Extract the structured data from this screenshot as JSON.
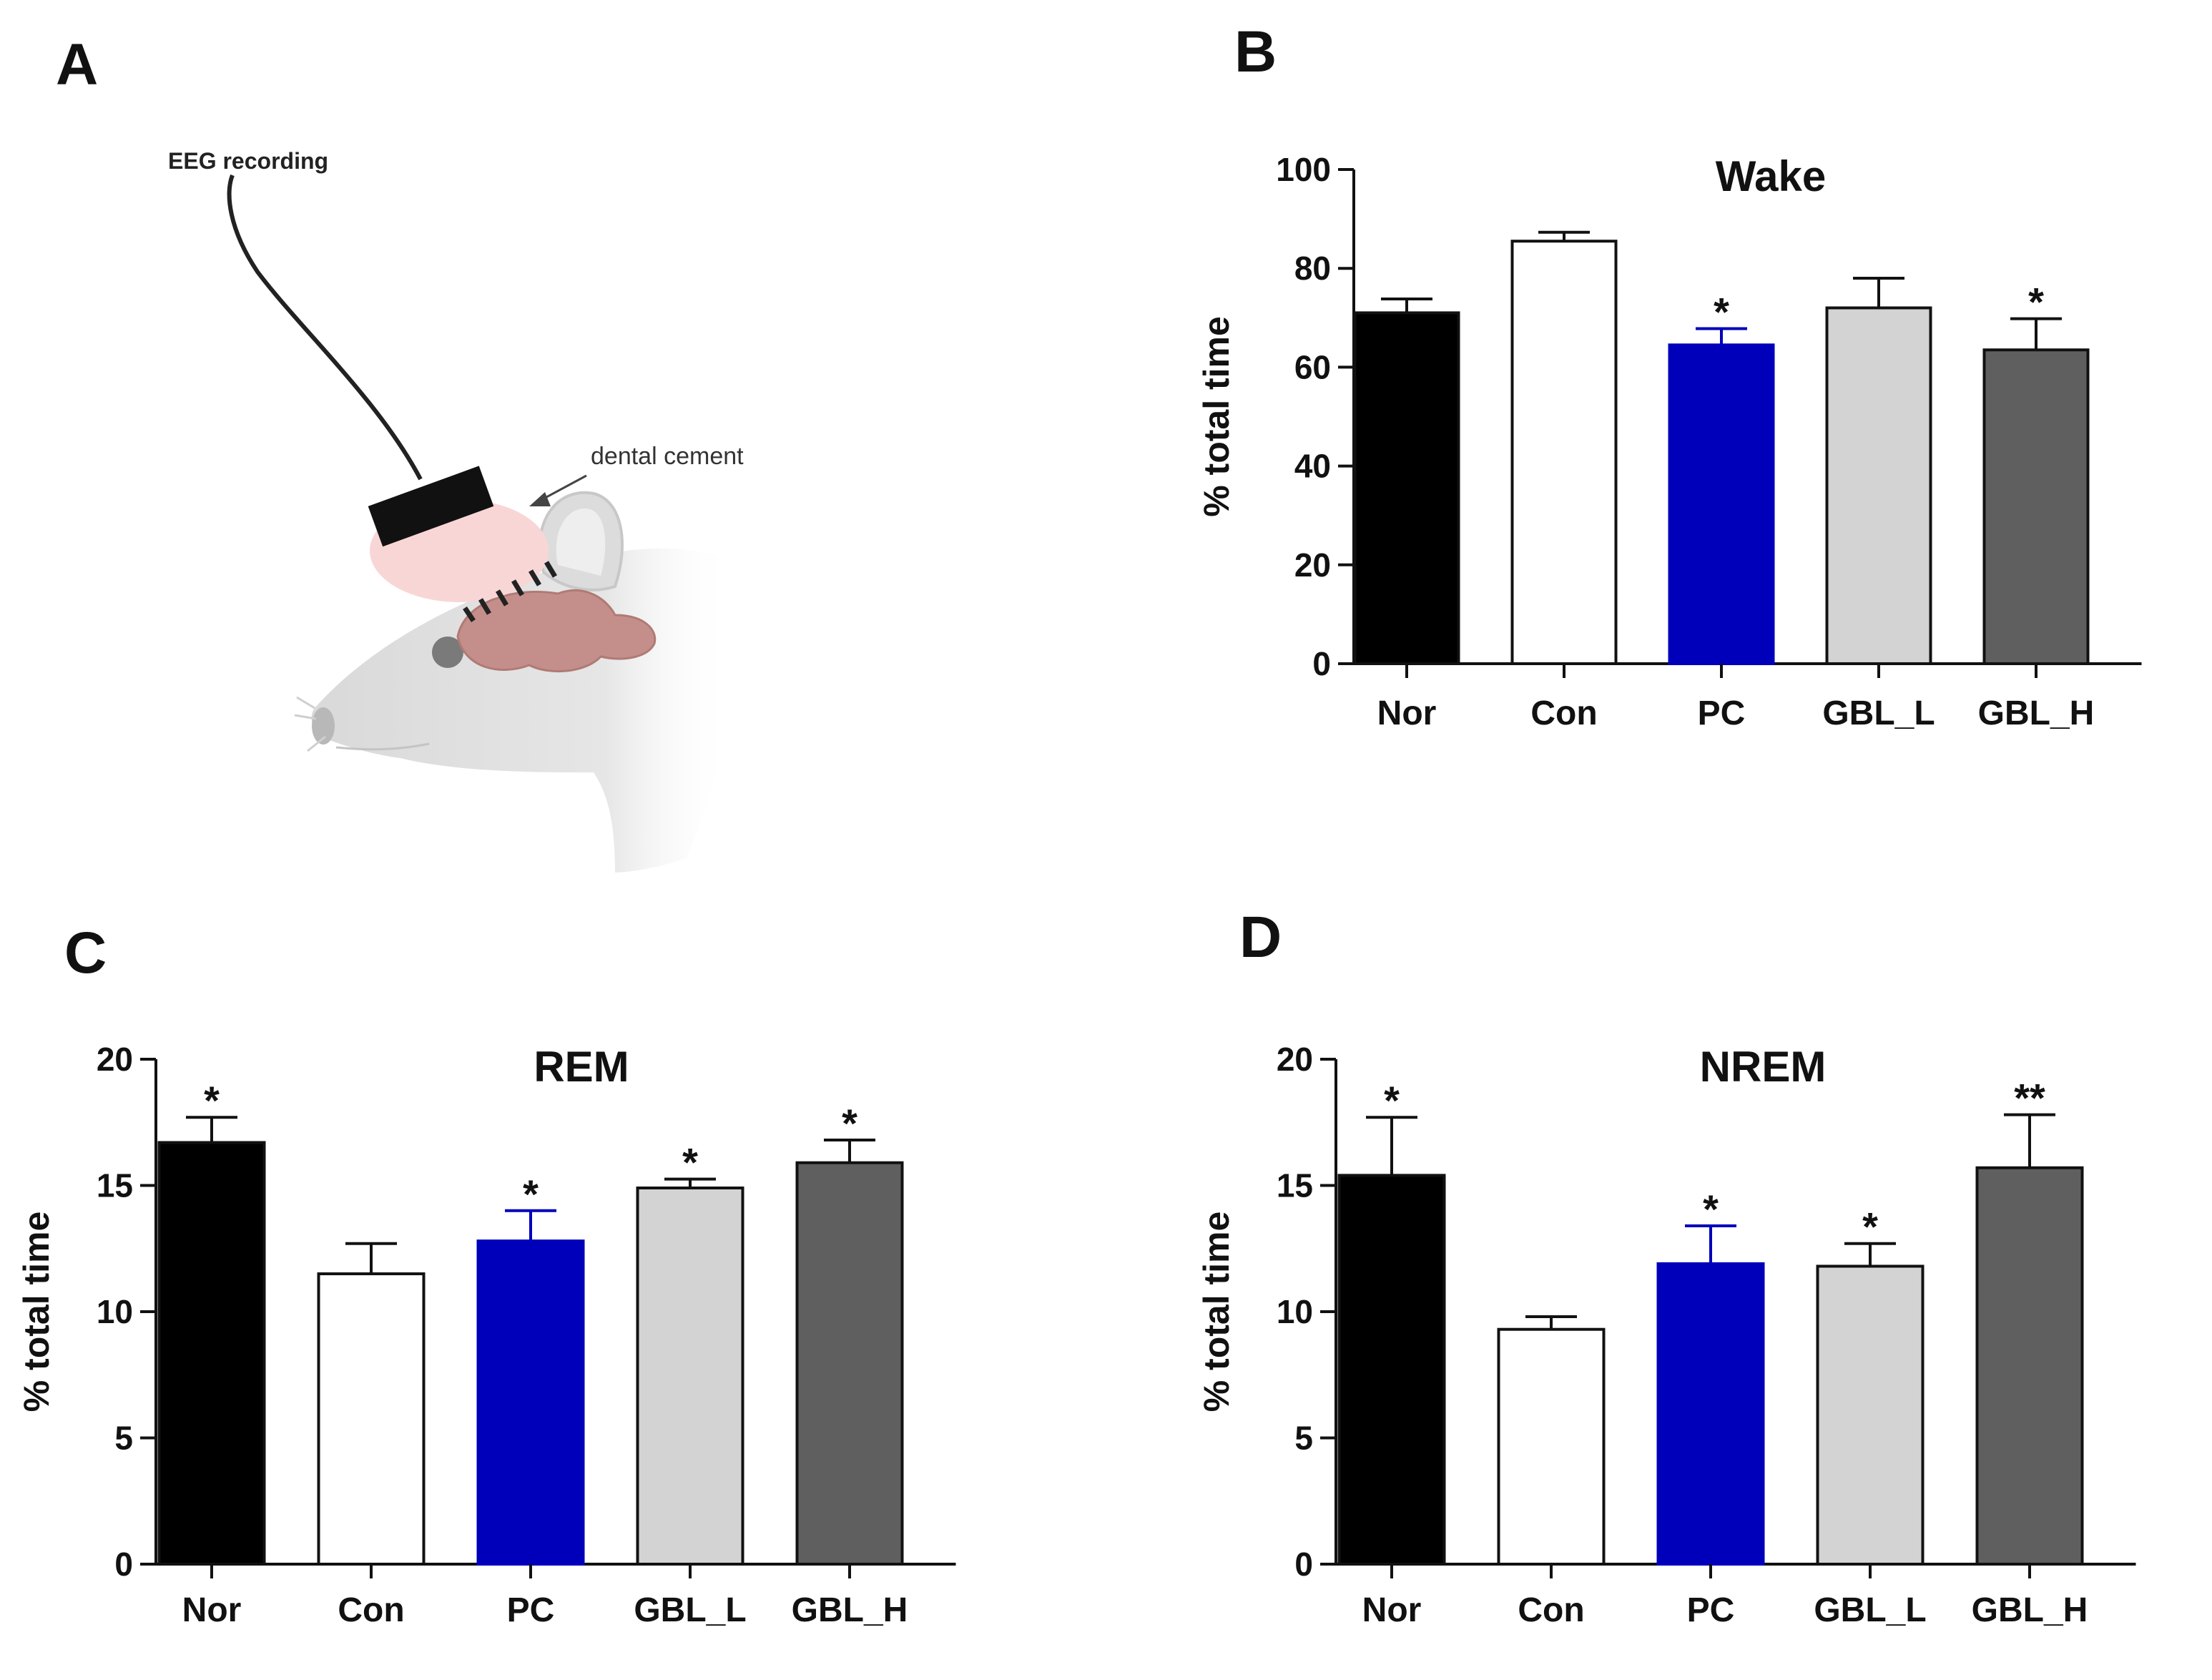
{
  "panels": {
    "A": "A",
    "B": "B",
    "C": "C",
    "D": "D"
  },
  "illustration": {
    "eeg_label": "EEG recording",
    "cement_label": "dental cement"
  },
  "colors": {
    "Nor": "#000000",
    "Con": "#ffffff",
    "PC": "#0000bb",
    "GBL_L": "#d3d3d3",
    "GBL_H": "#5f5f5f",
    "pc_error": "#0000bb"
  },
  "chart_data": [
    {
      "id": "B",
      "type": "bar",
      "title": "Wake",
      "ylabel": "% total time",
      "xlabel": "",
      "categories": [
        "Nor",
        "Con",
        "PC",
        "GBL_L",
        "GBL_H"
      ],
      "values": [
        71,
        85.5,
        64.5,
        72,
        63.5
      ],
      "errors": [
        2.8,
        1.8,
        3.3,
        6,
        6.3
      ],
      "significance": [
        "",
        "",
        "*",
        "",
        "*"
      ],
      "ylim": [
        0,
        100
      ],
      "yticks": [
        0,
        20,
        40,
        60,
        80,
        100
      ],
      "ytick_labels": [
        "0",
        "20",
        "40",
        "60",
        "80",
        "100"
      ]
    },
    {
      "id": "C",
      "type": "bar",
      "title": "REM",
      "ylabel": "% total time",
      "xlabel": "",
      "categories": [
        "Nor",
        "Con",
        "PC",
        "GBL_L",
        "GBL_H"
      ],
      "values": [
        16.7,
        11.5,
        12.8,
        14.9,
        15.9
      ],
      "errors": [
        1.0,
        1.2,
        1.2,
        0.35,
        0.9
      ],
      "significance": [
        "*",
        "",
        "*",
        "*",
        "*"
      ],
      "ylim": [
        0,
        20
      ],
      "yticks": [
        0,
        5,
        10,
        15,
        20
      ],
      "ytick_labels": [
        "0",
        "5",
        "10",
        "15",
        "20"
      ]
    },
    {
      "id": "D",
      "type": "bar",
      "title": "NREM",
      "ylabel": "% total time",
      "xlabel": "",
      "categories": [
        "Nor",
        "Con",
        "PC",
        "GBL_L",
        "GBL_H"
      ],
      "values": [
        15.4,
        9.3,
        11.9,
        11.8,
        15.7
      ],
      "errors": [
        2.3,
        0.5,
        1.5,
        0.9,
        2.1
      ],
      "significance": [
        "*",
        "",
        "*",
        "*",
        "**"
      ],
      "ylim": [
        0,
        20
      ],
      "yticks": [
        0,
        5,
        10,
        15,
        20
      ],
      "ytick_labels": [
        "0",
        "5",
        "10",
        "15",
        "20"
      ]
    }
  ]
}
